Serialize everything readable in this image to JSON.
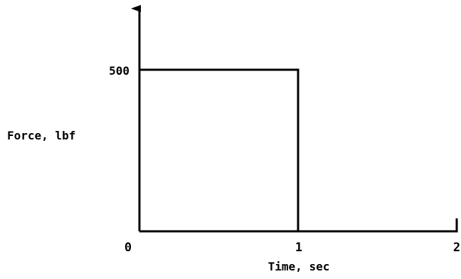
{
  "chart_data": {
    "type": "line",
    "title": "",
    "xlabel": "Time, sec",
    "ylabel": "Force, lbf",
    "x_ticks": [
      "0",
      "1",
      "2"
    ],
    "x_tick_values": [
      0,
      1,
      2
    ],
    "y_ticks": [
      "500"
    ],
    "y_tick_values": [
      500
    ],
    "xlim": [
      0,
      2
    ],
    "ylim": [
      0,
      600
    ],
    "grid": false,
    "legend": "none",
    "series": [
      {
        "points": [
          [
            0,
            0
          ],
          [
            0,
            500
          ],
          [
            1,
            500
          ],
          [
            1,
            0
          ],
          [
            2,
            0
          ],
          [
            2,
            40
          ]
        ]
      }
    ]
  }
}
